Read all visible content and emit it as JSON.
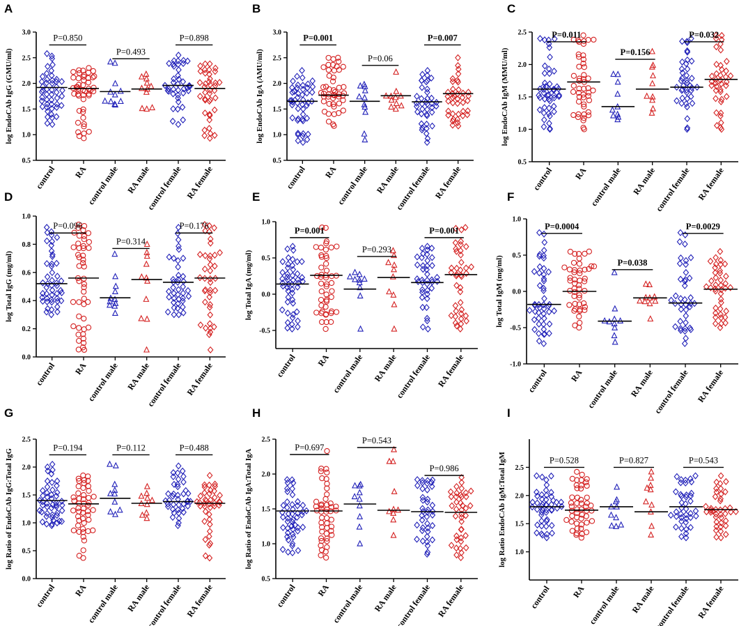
{
  "colors": {
    "control": "#1f1fb8",
    "ra": "#d42020",
    "axis": "#000000"
  },
  "group_labels": [
    "control",
    "RA",
    "control male",
    "RA male",
    "control female",
    "RA female"
  ],
  "group_colors": [
    "control",
    "ra",
    "control",
    "ra",
    "control",
    "ra"
  ],
  "group_markers": [
    "diamond",
    "circle",
    "triangle",
    "triangle",
    "diamond",
    "diamond"
  ],
  "chart_data": [
    {
      "type": "scatter",
      "panel": "A",
      "ylabel": "log EndoCAb IgG (GMU/ml)",
      "ylim": [
        0.5,
        3.0
      ],
      "yticks": [
        0.5,
        1.0,
        1.5,
        2.0,
        2.5,
        3.0
      ],
      "tick_labels": [
        "0.5",
        "1.0",
        "1.5",
        "2.0",
        "2.5",
        "3.0"
      ],
      "medians": [
        1.92,
        1.9,
        1.84,
        1.89,
        1.96,
        1.9
      ],
      "ranges": [
        [
          1.2,
          2.58
        ],
        [
          0.93,
          2.3
        ],
        [
          1.58,
          2.42
        ],
        [
          1.5,
          2.18
        ],
        [
          1.2,
          2.55
        ],
        [
          0.93,
          2.38
        ]
      ],
      "counts": [
        48,
        48,
        11,
        11,
        40,
        40
      ],
      "comparisons": [
        {
          "label": "P=0.850",
          "groups": [
            0,
            1
          ],
          "y": 2.75,
          "bold": false
        },
        {
          "label": "P=0.493",
          "groups": [
            2,
            3
          ],
          "y": 2.48,
          "bold": false
        },
        {
          "label": "P=0.898",
          "groups": [
            4,
            5
          ],
          "y": 2.75,
          "bold": false
        }
      ]
    },
    {
      "type": "scatter",
      "panel": "B",
      "ylabel": "log EndoCAb IgA (AMU/ml)",
      "ylim": [
        0.5,
        3.0
      ],
      "yticks": [
        0.5,
        1.0,
        1.5,
        2.0,
        2.5,
        3.0
      ],
      "tick_labels": [
        "0.5",
        "1.0",
        "1.5",
        "2.0",
        "2.5",
        "3.0"
      ],
      "medians": [
        1.65,
        1.77,
        1.65,
        1.76,
        1.64,
        1.8
      ],
      "ranges": [
        [
          0.85,
          2.25
        ],
        [
          1.17,
          2.5
        ],
        [
          0.9,
          1.98
        ],
        [
          1.5,
          2.22
        ],
        [
          0.85,
          2.25
        ],
        [
          1.17,
          2.5
        ]
      ],
      "counts": [
        48,
        48,
        11,
        11,
        40,
        40
      ],
      "comparisons": [
        {
          "label": "P=0.001",
          "groups": [
            0,
            1
          ],
          "y": 2.75,
          "bold": true
        },
        {
          "label": "P=0.06",
          "groups": [
            2,
            3
          ],
          "y": 2.35,
          "bold": false
        },
        {
          "label": "P=0.007",
          "groups": [
            4,
            5
          ],
          "y": 2.75,
          "bold": true
        }
      ]
    },
    {
      "type": "scatter",
      "panel": "C",
      "ylabel": "log EndoCAb IgM (MMU/ml)",
      "ylim": [
        0.5,
        2.5
      ],
      "yticks": [
        0.5,
        1.0,
        1.5,
        2.0,
        2.5
      ],
      "tick_labels": [
        "0.5",
        "1.0",
        "1.5",
        "2.0",
        "2.5"
      ],
      "medians": [
        1.62,
        1.73,
        1.35,
        1.62,
        1.65,
        1.77
      ],
      "ranges": [
        [
          1.0,
          2.4
        ],
        [
          1.0,
          2.45
        ],
        [
          1.15,
          1.85
        ],
        [
          1.25,
          2.2
        ],
        [
          1.0,
          2.4
        ],
        [
          1.0,
          2.45
        ]
      ],
      "counts": [
        48,
        48,
        10,
        10,
        40,
        40
      ],
      "comparisons": [
        {
          "label": "P=0.011",
          "groups": [
            0,
            1
          ],
          "y": 2.35,
          "bold": true
        },
        {
          "label": "P=0.156",
          "groups": [
            2,
            3
          ],
          "y": 2.08,
          "bold": true
        },
        {
          "label": "P=0.032",
          "groups": [
            4,
            5
          ],
          "y": 2.35,
          "bold": true
        }
      ]
    },
    {
      "type": "scatter",
      "panel": "D",
      "ylabel": "log Total IgG (mg/ml)",
      "ylim": [
        0.0,
        1.0
      ],
      "yticks": [
        0.0,
        0.2,
        0.4,
        0.6,
        0.8,
        1.0
      ],
      "tick_labels": [
        "0.0",
        "0.2",
        "0.4",
        "0.6",
        "0.8",
        "1.0"
      ],
      "medians": [
        0.52,
        0.56,
        0.42,
        0.55,
        0.53,
        0.56
      ],
      "ranges": [
        [
          0.3,
          0.92
        ],
        [
          0.05,
          0.94
        ],
        [
          0.31,
          0.73
        ],
        [
          0.05,
          0.8
        ],
        [
          0.3,
          0.92
        ],
        [
          0.05,
          0.94
        ]
      ],
      "counts": [
        48,
        48,
        11,
        11,
        40,
        40
      ],
      "comparisons": [
        {
          "label": "P=0.096",
          "groups": [
            0,
            1
          ],
          "y": 0.88,
          "bold": false
        },
        {
          "label": "P=0.314",
          "groups": [
            2,
            3
          ],
          "y": 0.77,
          "bold": false
        },
        {
          "label": "P=0.176",
          "groups": [
            4,
            5
          ],
          "y": 0.88,
          "bold": false
        }
      ]
    },
    {
      "type": "scatter",
      "panel": "E",
      "ylabel": "log Total IgA (mg/ml)",
      "ylim": [
        -0.75,
        1.0
      ],
      "yticks": [
        -0.5,
        0.0,
        0.5,
        1.0
      ],
      "tick_labels": [
        "-0.5",
        "0.0",
        "0.5",
        "1.0"
      ],
      "medians": [
        0.14,
        0.26,
        0.07,
        0.23,
        0.16,
        0.27
      ],
      "ranges": [
        [
          -0.48,
          0.66
        ],
        [
          -0.48,
          0.92
        ],
        [
          -0.48,
          0.3
        ],
        [
          -0.48,
          0.6
        ],
        [
          -0.48,
          0.66
        ],
        [
          -0.48,
          0.92
        ]
      ],
      "counts": [
        48,
        48,
        10,
        10,
        40,
        40
      ],
      "comparisons": [
        {
          "label": "P=0.001",
          "groups": [
            0,
            1
          ],
          "y": 0.78,
          "bold": true
        },
        {
          "label": "P=0.293",
          "groups": [
            2,
            3
          ],
          "y": 0.52,
          "bold": false
        },
        {
          "label": "P=0.001",
          "groups": [
            4,
            5
          ],
          "y": 0.78,
          "bold": true
        }
      ]
    },
    {
      "type": "scatter",
      "panel": "F",
      "ylabel": "log Total IgM (mg/ml)",
      "ylim": [
        -1.0,
        1.0
      ],
      "yticks": [
        -1.0,
        -0.5,
        0.0,
        0.5,
        1.0
      ],
      "tick_labels": [
        "-1.0",
        "-0.5",
        "0.0",
        "0.5",
        "1.0"
      ],
      "medians": [
        -0.18,
        0.0,
        -0.41,
        -0.09,
        -0.16,
        0.03
      ],
      "ranges": [
        [
          -0.72,
          0.81
        ],
        [
          -0.5,
          0.55
        ],
        [
          -0.7,
          0.26
        ],
        [
          -0.38,
          0.1
        ],
        [
          -0.72,
          0.81
        ],
        [
          -0.5,
          0.55
        ]
      ],
      "counts": [
        48,
        48,
        10,
        10,
        40,
        40
      ],
      "comparisons": [
        {
          "label": "P=0.0004",
          "groups": [
            0,
            1
          ],
          "y": 0.8,
          "bold": true
        },
        {
          "label": "P=0.038",
          "groups": [
            2,
            3
          ],
          "y": 0.3,
          "bold": true
        },
        {
          "label": "P=0.0029",
          "groups": [
            4,
            5
          ],
          "y": 0.8,
          "bold": true
        }
      ]
    },
    {
      "type": "scatter",
      "panel": "G",
      "ylabel": "log Ratio of EndoCAb IgG:Total IgG",
      "ylim": [
        0.0,
        2.5
      ],
      "yticks": [
        0.0,
        0.5,
        1.0,
        1.5,
        2.0,
        2.5
      ],
      "tick_labels": [
        "0.0",
        "0.5",
        "1.0",
        "1.5",
        "2.0",
        "2.5"
      ],
      "medians": [
        1.4,
        1.34,
        1.44,
        1.35,
        1.38,
        1.35
      ],
      "ranges": [
        [
          0.95,
          2.05
        ],
        [
          0.37,
          1.85
        ],
        [
          1.15,
          2.05
        ],
        [
          1.08,
          1.65
        ],
        [
          0.95,
          2.02
        ],
        [
          0.37,
          1.85
        ]
      ],
      "counts": [
        48,
        48,
        10,
        10,
        40,
        40
      ],
      "comparisons": [
        {
          "label": "P=0.194",
          "groups": [
            0,
            1
          ],
          "y": 2.22,
          "bold": false
        },
        {
          "label": "P=0.112",
          "groups": [
            2,
            3
          ],
          "y": 2.22,
          "bold": false
        },
        {
          "label": "P=0.488",
          "groups": [
            4,
            5
          ],
          "y": 2.22,
          "bold": false
        }
      ]
    },
    {
      "type": "scatter",
      "panel": "H",
      "ylabel": "log Ratio of EndoCAb IgA:Total IgA",
      "ylim": [
        0.5,
        2.5
      ],
      "yticks": [
        0.5,
        1.0,
        1.5,
        2.0,
        2.5
      ],
      "tick_labels": [
        "0.5",
        "1.0",
        "1.5",
        "2.0",
        "2.5"
      ],
      "medians": [
        1.47,
        1.47,
        1.57,
        1.48,
        1.46,
        1.45
      ],
      "ranges": [
        [
          0.87,
          1.92
        ],
        [
          0.8,
          2.33
        ],
        [
          1.0,
          1.85
        ],
        [
          1.12,
          2.35
        ],
        [
          0.85,
          1.92
        ],
        [
          0.8,
          1.95
        ]
      ],
      "counts": [
        48,
        48,
        10,
        10,
        40,
        40
      ],
      "comparisons": [
        {
          "label": "P=0.697",
          "groups": [
            0,
            1
          ],
          "y": 2.28,
          "bold": false
        },
        {
          "label": "P=0.543",
          "groups": [
            2,
            3
          ],
          "y": 2.38,
          "bold": false
        },
        {
          "label": "P=0.986",
          "groups": [
            4,
            5
          ],
          "y": 1.98,
          "bold": false
        }
      ]
    },
    {
      "type": "scatter",
      "panel": "I",
      "ylabel": "log Ratio EndoCAb IgM:Total IgM",
      "ylim": [
        0.5,
        3.0
      ],
      "yticks": [
        1.0,
        1.5,
        2.0,
        2.5
      ],
      "tick_labels": [
        "1.0",
        "1.5",
        "2.0",
        "2.5"
      ],
      "medians": [
        1.8,
        1.74,
        1.8,
        1.71,
        1.8,
        1.75
      ],
      "ranges": [
        [
          1.25,
          2.35
        ],
        [
          1.25,
          2.42
        ],
        [
          1.45,
          2.15
        ],
        [
          1.3,
          2.42
        ],
        [
          1.25,
          2.35
        ],
        [
          1.25,
          2.35
        ]
      ],
      "counts": [
        48,
        48,
        10,
        10,
        40,
        40
      ],
      "comparisons": [
        {
          "label": "P=0.528",
          "groups": [
            0,
            1
          ],
          "y": 2.5,
          "bold": false
        },
        {
          "label": "P=0.827",
          "groups": [
            2,
            3
          ],
          "y": 2.5,
          "bold": false
        },
        {
          "label": "P=0.543",
          "groups": [
            4,
            5
          ],
          "y": 2.5,
          "bold": false
        }
      ]
    }
  ]
}
